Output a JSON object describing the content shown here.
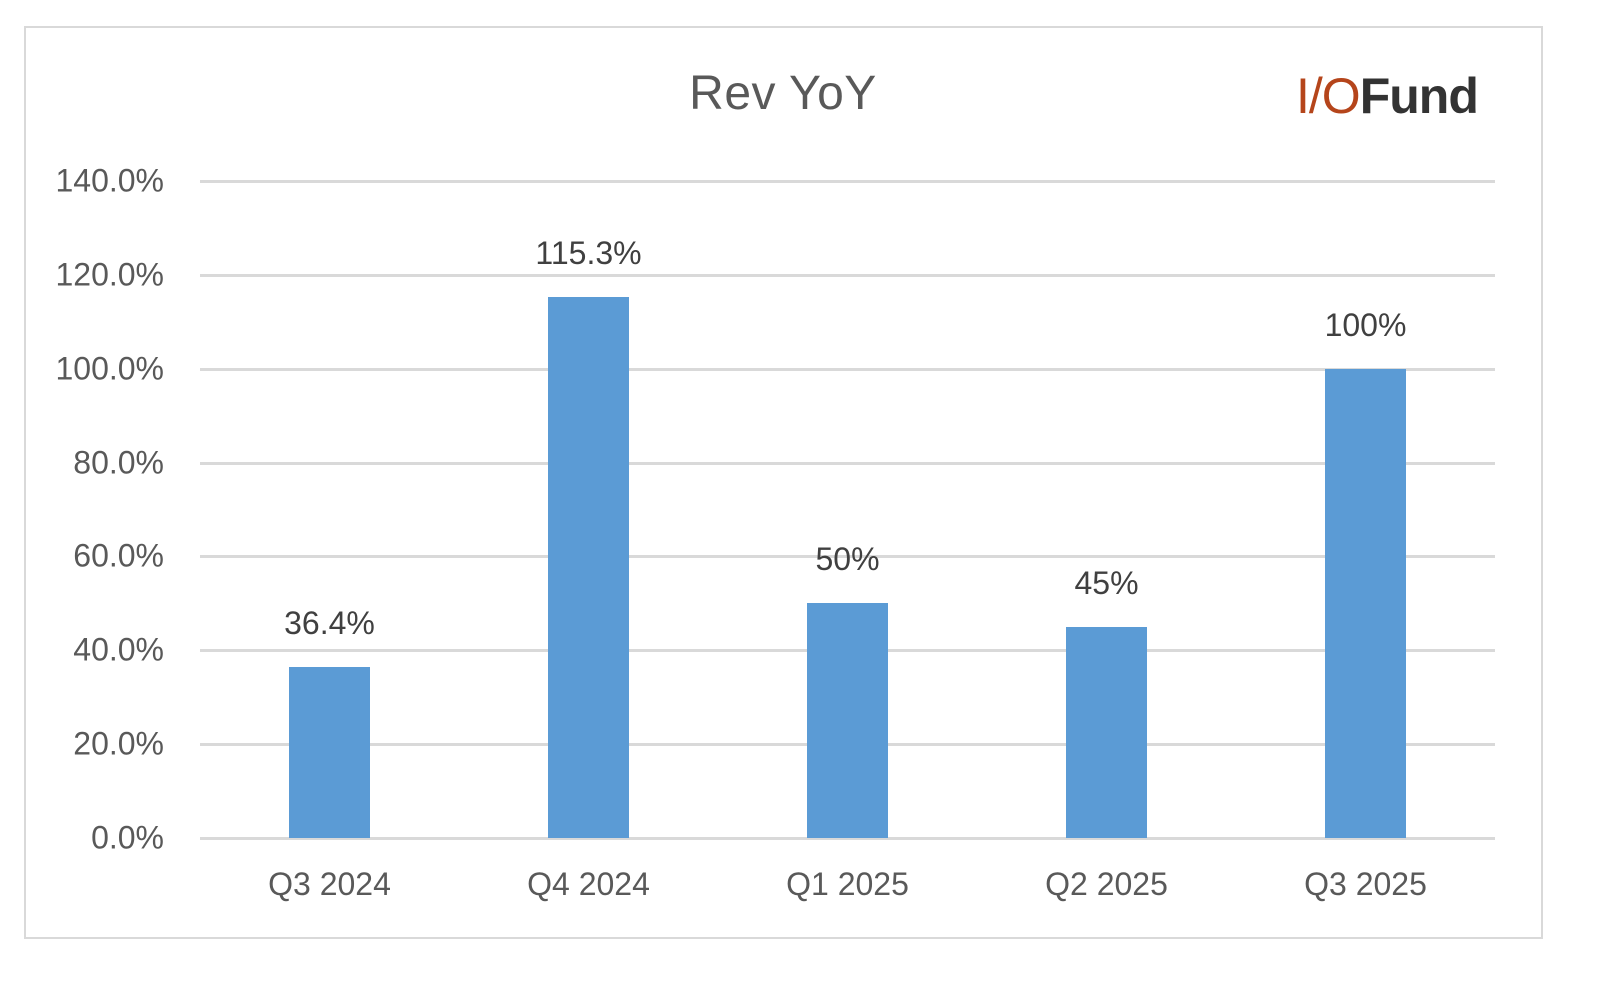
{
  "chart": {
    "title": "Rev YoY",
    "logo": {
      "part1": "I/O",
      "part2": "Fund",
      "part1_color": "#b5451b",
      "part2_color": "#333333"
    },
    "bar_color": "#5b9bd5",
    "gridline_color": "#d9d9d9",
    "y_ticks": [
      "140.0%",
      "120.0%",
      "100.0%",
      "80.0%",
      "60.0%",
      "40.0%",
      "20.0%",
      "0.0%"
    ],
    "categories": [
      "Q3 2024",
      "Q4 2024",
      "Q1 2025",
      "Q2 2025",
      "Q3 2025"
    ],
    "bar_labels": [
      "36.4%",
      "115.3%",
      "50%",
      "45%",
      "100%"
    ]
  },
  "chart_data": {
    "type": "bar",
    "title": "Rev YoY",
    "xlabel": "",
    "ylabel": "",
    "categories": [
      "Q3 2024",
      "Q4 2024",
      "Q1 2025",
      "Q2 2025",
      "Q3 2025"
    ],
    "values": [
      36.4,
      115.3,
      50,
      45,
      100
    ],
    "data_labels": [
      "36.4%",
      "115.3%",
      "50%",
      "45%",
      "100%"
    ],
    "ylim": [
      0,
      140
    ],
    "y_ticks": [
      0,
      20,
      40,
      60,
      80,
      100,
      120,
      140
    ],
    "y_tick_format": "0.0%",
    "grid": true,
    "legend": null,
    "annotations": [
      "I/OFund logo (top right)"
    ]
  }
}
